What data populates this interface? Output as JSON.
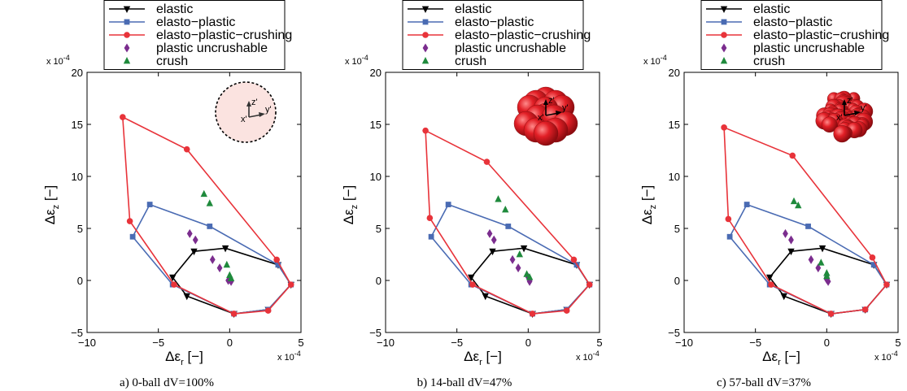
{
  "colors": {
    "elastic": "#000000",
    "elasto_plastic": "#4a6bb3",
    "elasto_plastic_crushing": "#e8333a",
    "plastic_uncrushable": "#7b2d8e",
    "crush": "#1f8a3c",
    "sphere_fill": "#e21f26",
    "circle_fill": "#fbe3e0"
  },
  "chart_data": [
    {
      "type": "line",
      "caption": "a) 0-ball dV=100%",
      "xlabel": "Δε",
      "xlabel_sub": "r",
      "ylabel": "Δε",
      "ylabel_sub": "z",
      "units": "[−]",
      "x_multiplier": "x 10",
      "x_multiplier_exp": "-4",
      "y_multiplier": "x 10",
      "y_multiplier_exp": "-4",
      "xlim": [
        -10,
        5
      ],
      "ylim": [
        -5,
        20
      ],
      "xticks": [
        -10,
        -5,
        0,
        5
      ],
      "yticks": [
        -5,
        0,
        5,
        10,
        15,
        20
      ],
      "xtick_labels": [
        "−10",
        "−5",
        "0",
        "5"
      ],
      "ytick_labels": [
        "−5",
        "0",
        "5",
        "10",
        "15",
        "20"
      ],
      "inset": "circle",
      "inset_axis_labels": [
        "z'",
        "y'",
        "x'"
      ],
      "legend": [
        "elastic",
        "elasto−plastic",
        "elasto−plastic−crushing",
        "plastic uncrushable",
        "crush"
      ],
      "series": [
        {
          "name": "elastic",
          "marker": "tri-down",
          "closed": true,
          "x": [
            -4.0,
            -2.5,
            -0.3,
            3.4,
            4.3,
            2.7,
            0.3,
            -3.0,
            -4.0
          ],
          "y": [
            0.3,
            2.8,
            3.1,
            1.5,
            -0.4,
            -2.8,
            -3.2,
            -1.5,
            0.3
          ]
        },
        {
          "name": "elasto−plastic",
          "marker": "square",
          "closed": true,
          "x": [
            -6.8,
            -5.6,
            -1.4,
            3.4,
            4.3,
            2.7,
            0.3,
            -4.0,
            -6.8
          ],
          "y": [
            4.2,
            7.3,
            5.2,
            1.5,
            -0.4,
            -2.8,
            -3.2,
            -0.4,
            4.2
          ]
        },
        {
          "name": "elasto−plastic−crushing",
          "marker": "circle",
          "closed": true,
          "x": [
            -7.0,
            -7.5,
            -3.0,
            3.3,
            4.3,
            2.7,
            0.3,
            -3.9,
            -7.0
          ],
          "y": [
            5.7,
            15.7,
            12.6,
            2.0,
            -0.4,
            -2.9,
            -3.2,
            -0.4,
            5.7
          ]
        },
        {
          "name": "plastic uncrushable",
          "marker": "diamond",
          "closed": false,
          "line": false,
          "x": [
            -2.8,
            -2.4,
            -1.2,
            -0.7,
            0.0,
            -0.1,
            0.1
          ],
          "y": [
            4.5,
            3.9,
            2.0,
            1.2,
            0.3,
            0.0,
            -0.1
          ]
        },
        {
          "name": "crush",
          "marker": "tri-up",
          "closed": false,
          "line": false,
          "x": [
            -1.8,
            -1.4,
            -0.2,
            0.0,
            0.1
          ],
          "y": [
            8.3,
            7.4,
            1.5,
            0.5,
            0.2
          ]
        }
      ]
    },
    {
      "type": "line",
      "caption": "b) 14-ball dV=47%",
      "xlabel": "Δε",
      "xlabel_sub": "r",
      "ylabel": "Δε",
      "ylabel_sub": "z",
      "units": "[−]",
      "x_multiplier": "x 10",
      "x_multiplier_exp": "-4",
      "y_multiplier": "x 10",
      "y_multiplier_exp": "-4",
      "xlim": [
        -10,
        5
      ],
      "ylim": [
        -5,
        20
      ],
      "xticks": [
        -10,
        -5,
        0,
        5
      ],
      "yticks": [
        -5,
        0,
        5,
        10,
        15,
        20
      ],
      "xtick_labels": [
        "−10",
        "−5",
        "0",
        "5"
      ],
      "ytick_labels": [
        "−5",
        "0",
        "5",
        "10",
        "15",
        "20"
      ],
      "inset": "cluster14",
      "inset_axis_labels": [
        "z'",
        "y'",
        "x'"
      ],
      "legend": [
        "elastic",
        "elasto−plastic",
        "elasto−plastic−crushing",
        "plastic uncrushable",
        "crush"
      ],
      "series": [
        {
          "name": "elastic",
          "marker": "tri-down",
          "closed": true,
          "x": [
            -4.0,
            -2.5,
            -0.3,
            3.4,
            4.3,
            2.7,
            0.3,
            -3.0,
            -4.0
          ],
          "y": [
            0.3,
            2.8,
            3.1,
            1.5,
            -0.4,
            -2.8,
            -3.2,
            -1.5,
            0.3
          ]
        },
        {
          "name": "elasto−plastic",
          "marker": "square",
          "closed": true,
          "x": [
            -6.8,
            -5.6,
            -1.4,
            3.4,
            4.3,
            2.7,
            0.3,
            -4.0,
            -6.8
          ],
          "y": [
            4.2,
            7.3,
            5.2,
            1.5,
            -0.4,
            -2.8,
            -3.2,
            -0.4,
            4.2
          ]
        },
        {
          "name": "elasto−plastic−crushing",
          "marker": "circle",
          "closed": true,
          "x": [
            -6.9,
            -7.2,
            -2.9,
            3.2,
            4.3,
            2.7,
            0.3,
            -3.9,
            -6.9
          ],
          "y": [
            6.0,
            14.4,
            11.4,
            2.0,
            -0.4,
            -2.9,
            -3.2,
            -0.4,
            6.0
          ]
        },
        {
          "name": "plastic uncrushable",
          "marker": "diamond",
          "closed": false,
          "line": false,
          "x": [
            -2.7,
            -2.4,
            -1.1,
            -0.7,
            0.0,
            0.1,
            0.1
          ],
          "y": [
            4.5,
            3.9,
            2.0,
            1.2,
            0.3,
            0.0,
            -0.1
          ]
        },
        {
          "name": "crush",
          "marker": "tri-up",
          "closed": false,
          "line": false,
          "x": [
            -2.1,
            -1.6,
            -0.6,
            -0.1,
            0.1
          ],
          "y": [
            7.8,
            6.8,
            2.5,
            0.6,
            0.3
          ]
        }
      ]
    },
    {
      "type": "line",
      "caption": "c) 57-ball dV=37%",
      "xlabel": "Δε",
      "xlabel_sub": "r",
      "ylabel": "Δε",
      "ylabel_sub": "z",
      "units": "[−]",
      "x_multiplier": "x 10",
      "x_multiplier_exp": "-4",
      "y_multiplier": "x 10",
      "y_multiplier_exp": "-4",
      "xlim": [
        -10,
        5
      ],
      "ylim": [
        -5,
        20
      ],
      "xticks": [
        -10,
        -5,
        0,
        5
      ],
      "yticks": [
        -5,
        0,
        5,
        10,
        15,
        20
      ],
      "xtick_labels": [
        "−10",
        "−5",
        "0",
        "5"
      ],
      "ytick_labels": [
        "−5",
        "0",
        "5",
        "10",
        "15",
        "20"
      ],
      "inset": "cluster57",
      "inset_axis_labels": [
        "z'",
        "y'",
        "x'"
      ],
      "legend": [
        "elastic",
        "elasto−plastic",
        "elasto−plastic−crushing",
        "plastic uncrushable",
        "crush"
      ],
      "series": [
        {
          "name": "elastic",
          "marker": "tri-down",
          "closed": true,
          "x": [
            -4.0,
            -2.5,
            -0.3,
            3.3,
            4.2,
            2.7,
            0.3,
            -3.0,
            -4.0
          ],
          "y": [
            0.3,
            2.8,
            3.1,
            1.5,
            -0.4,
            -2.8,
            -3.2,
            -1.5,
            0.3
          ]
        },
        {
          "name": "elasto−plastic",
          "marker": "square",
          "closed": true,
          "x": [
            -6.8,
            -5.6,
            -1.3,
            3.3,
            4.2,
            2.7,
            0.3,
            -4.0,
            -6.8
          ],
          "y": [
            4.2,
            7.3,
            5.2,
            1.5,
            -0.4,
            -2.8,
            -3.2,
            -0.4,
            4.2
          ]
        },
        {
          "name": "elasto−plastic−crushing",
          "marker": "circle",
          "closed": true,
          "x": [
            -6.9,
            -7.2,
            -2.4,
            3.2,
            4.2,
            2.7,
            0.3,
            -3.9,
            -6.9
          ],
          "y": [
            5.9,
            14.7,
            12.0,
            2.2,
            -0.4,
            -2.8,
            -3.2,
            -0.4,
            5.9
          ]
        },
        {
          "name": "plastic uncrushable",
          "marker": "diamond",
          "closed": false,
          "line": false,
          "x": [
            -2.9,
            -2.5,
            -1.1,
            -0.6,
            0.0,
            0.0,
            0.1
          ],
          "y": [
            4.5,
            3.9,
            2.0,
            1.2,
            0.3,
            0.1,
            -0.1
          ]
        },
        {
          "name": "crush",
          "marker": "tri-up",
          "closed": false,
          "line": false,
          "x": [
            -2.3,
            -2.0,
            -0.4,
            0.0,
            0.0
          ],
          "y": [
            7.6,
            7.2,
            1.7,
            0.7,
            0.4
          ]
        }
      ]
    }
  ]
}
